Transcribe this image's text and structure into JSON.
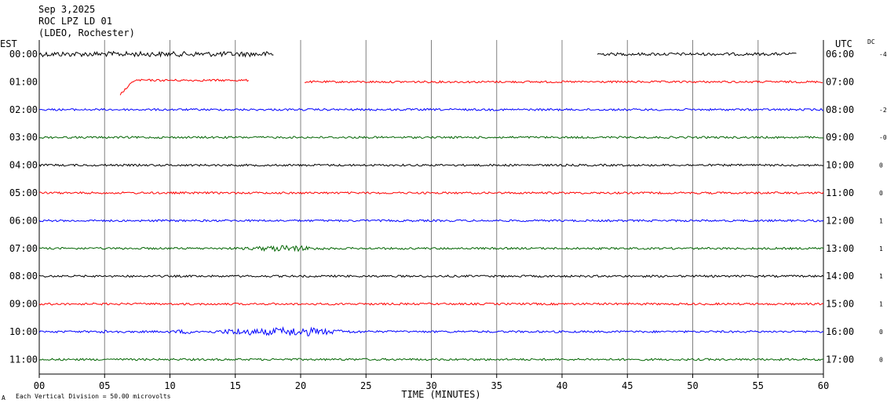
{
  "header": {
    "date": "Sep 3,2025",
    "station": "ROC LPZ LD 01",
    "network": "(LDEO, Rochester)"
  },
  "left_zone_label": "EST",
  "right_zone_label": "UTC",
  "dc_label": "DC",
  "footer": {
    "scale_note": "Each Vertical Division =   50.00 microvolts",
    "corner_mark": "A"
  },
  "chart_data": {
    "type": "line",
    "title": "",
    "xlabel": "TIME (MINUTES)",
    "ylabel": "",
    "xlim": [
      0,
      60
    ],
    "x_ticks": [
      "00",
      "05",
      "10",
      "15",
      "20",
      "25",
      "30",
      "35",
      "40",
      "45",
      "50",
      "55",
      "60"
    ],
    "grid": true,
    "rows": [
      {
        "est": "00:00",
        "utc": "06:00",
        "dc": "-4",
        "color": "#000000",
        "segments": [
          [
            0.0,
            18.0
          ],
          [
            42.7,
            58.0
          ]
        ]
      },
      {
        "est": "01:00",
        "utc": "07:00",
        "dc": "",
        "color": "#ff0000",
        "segments": [
          [
            6.2,
            16.1
          ],
          [
            20.3,
            60.0
          ]
        ]
      },
      {
        "est": "02:00",
        "utc": "08:00",
        "dc": "-2",
        "color": "#0000ff",
        "segments": [
          [
            0.0,
            60.0
          ]
        ]
      },
      {
        "est": "03:00",
        "utc": "09:00",
        "dc": "-0",
        "color": "#006400",
        "segments": [
          [
            0.0,
            60.0
          ]
        ]
      },
      {
        "est": "04:00",
        "utc": "10:00",
        "dc": "0",
        "color": "#000000",
        "segments": [
          [
            0.0,
            60.0
          ]
        ]
      },
      {
        "est": "05:00",
        "utc": "11:00",
        "dc": "0",
        "color": "#ff0000",
        "segments": [
          [
            0.0,
            60.0
          ]
        ]
      },
      {
        "est": "06:00",
        "utc": "12:00",
        "dc": "1",
        "color": "#0000ff",
        "segments": [
          [
            0.0,
            60.0
          ]
        ]
      },
      {
        "est": "07:00",
        "utc": "13:00",
        "dc": "1",
        "color": "#006400",
        "segments": [
          [
            0.0,
            60.0
          ]
        ]
      },
      {
        "est": "08:00",
        "utc": "14:00",
        "dc": "1",
        "color": "#000000",
        "segments": [
          [
            0.0,
            60.0
          ]
        ]
      },
      {
        "est": "09:00",
        "utc": "15:00",
        "dc": "1",
        "color": "#ff0000",
        "segments": [
          [
            0.0,
            60.0
          ]
        ]
      },
      {
        "est": "10:00",
        "utc": "16:00",
        "dc": "0",
        "color": "#0000ff",
        "segments": [
          [
            0.0,
            60.0
          ]
        ]
      },
      {
        "est": "11:00",
        "utc": "17:00",
        "dc": "0",
        "color": "#006400",
        "segments": [
          [
            0.0,
            60.0
          ]
        ]
      }
    ]
  }
}
